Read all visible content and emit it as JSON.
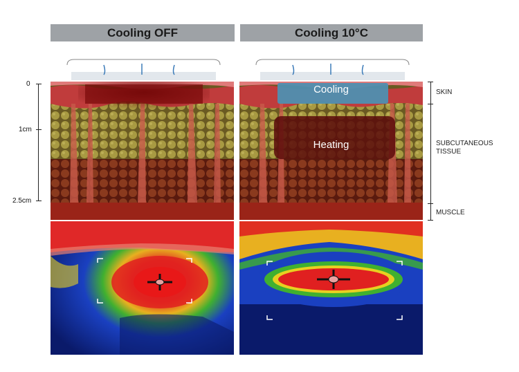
{
  "headers": {
    "left": "Cooling OFF",
    "right": "Cooling 10°C"
  },
  "ruler": {
    "ticks": [
      "0",
      "1cm",
      "2.5cm"
    ]
  },
  "layers": {
    "skin": "SKIN",
    "subcutaneous_line1": "SUBCUTANEOUS",
    "subcutaneous_line2": "TISSUE",
    "muscle": "MUSCLE"
  },
  "zones": {
    "cooling": "Cooling",
    "heating": "Heating"
  },
  "colors": {
    "header_bg": "#9ea2a6",
    "skin": "#b83a3a",
    "fat": "#9a8a3a",
    "muscle": "#8a2a1a",
    "cooling_zone": "#4f8fb0",
    "heating_zone": "#6a1010",
    "thermal_hot": "#e02020",
    "thermal_warm": "#e8d020",
    "thermal_mid": "#30b030",
    "thermal_cool": "#1a40c0",
    "thermal_cold": "#0a1a6a"
  }
}
